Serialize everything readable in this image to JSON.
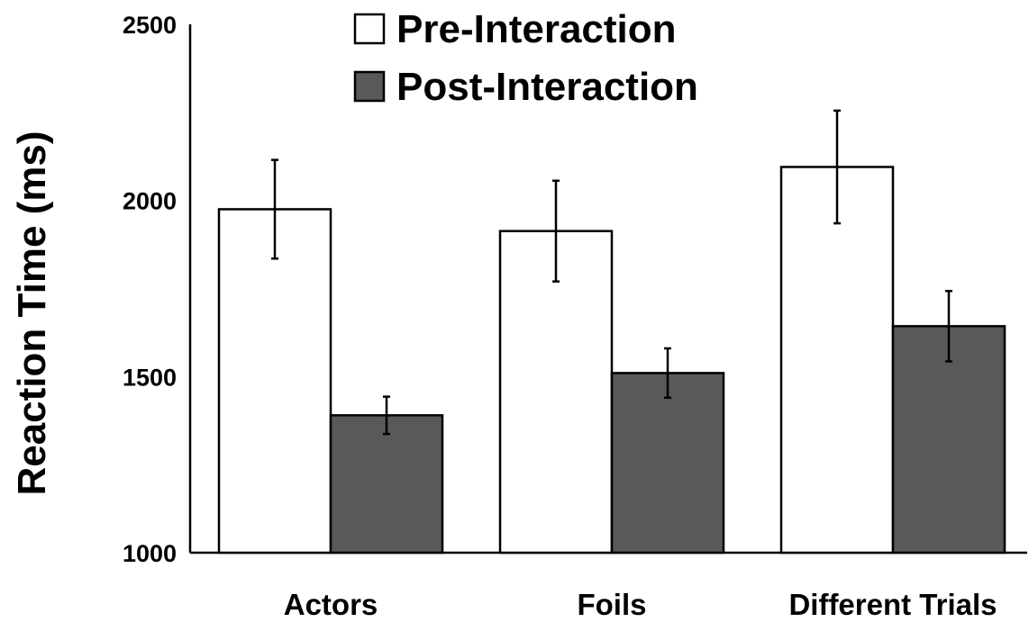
{
  "chart_data": {
    "type": "bar",
    "categories": [
      "Actors",
      "Foils",
      "Different Trials"
    ],
    "series": [
      {
        "name": "Pre-Interaction",
        "values": [
          1975,
          1913,
          2095
        ],
        "errors": [
          140,
          143,
          160
        ],
        "color": "#ffffff"
      },
      {
        "name": "Post-Interaction",
        "values": [
          1390,
          1510,
          1643
        ],
        "errors": [
          53,
          70,
          100
        ],
        "color": "#595959"
      }
    ],
    "ylabel": "Reaction Time (ms)",
    "xlabel": "",
    "ylim": [
      1000,
      2500
    ],
    "yticks": [
      "1000",
      "1500",
      "2000",
      "2500"
    ],
    "grid": false,
    "legend_position": "top"
  }
}
